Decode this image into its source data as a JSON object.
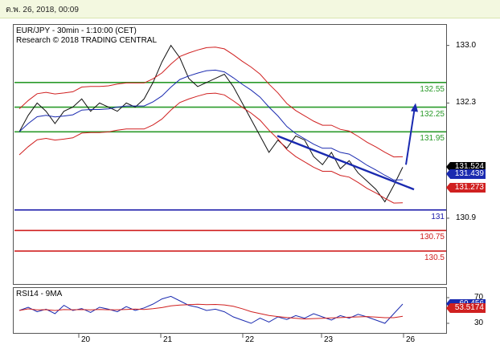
{
  "header": {
    "date_time": "ต.พ. 26, 2018, 00:09"
  },
  "chart_data": {
    "type": "line",
    "title": "EUR/JPY - 30min - 1:10:00 (CET)",
    "subtitle": "Research © 2018 TRADING CENTRAL",
    "y_ticks": [
      "133.0",
      "132.3",
      "130.9"
    ],
    "ylim": [
      130.1,
      133.25
    ],
    "x_ticks": [
      "20",
      "21",
      "22",
      "23",
      "26"
    ],
    "levels": [
      {
        "value": 132.55,
        "label": "132.55",
        "color": "#2a9a2a"
      },
      {
        "value": 132.25,
        "label": "132.25",
        "color": "#2a9a2a"
      },
      {
        "value": 131.95,
        "label": "131.95",
        "color": "#2a9a2a"
      },
      {
        "value": 131,
        "label": "131",
        "color": "#1a1aaa"
      },
      {
        "value": 130.75,
        "label": "130.75",
        "color": "#d02020"
      },
      {
        "value": 130.5,
        "label": "130.5",
        "color": "#d02020"
      }
    ],
    "price_series": [
      131.95,
      132.15,
      132.3,
      132.2,
      132.05,
      132.2,
      132.25,
      132.35,
      132.2,
      132.3,
      132.25,
      132.2,
      132.3,
      132.25,
      132.35,
      132.55,
      132.8,
      133.0,
      132.85,
      132.6,
      132.5,
      132.55,
      132.6,
      132.65,
      132.5,
      132.3,
      132.1,
      131.9,
      131.7,
      131.85,
      131.75,
      131.9,
      131.85,
      131.65,
      131.55,
      131.7,
      131.5,
      131.6,
      131.45,
      131.35,
      131.25,
      131.1,
      131.3,
      131.52
    ],
    "tags": [
      {
        "label": "131.524",
        "value": 131.524,
        "color": "#000000"
      },
      {
        "label": "131.439",
        "value": 131.439,
        "color": "#1a2ab0"
      },
      {
        "label": "131.273",
        "value": 131.273,
        "color": "#d02020"
      }
    ],
    "rsi": {
      "title": "RSI14 - 9MA",
      "y_ticks": [
        "70",
        "30"
      ],
      "ylim": [
        15,
        85
      ],
      "values": [
        50,
        55,
        48,
        52,
        45,
        58,
        50,
        53,
        47,
        55,
        52,
        48,
        56,
        50,
        54,
        60,
        68,
        72,
        65,
        58,
        55,
        50,
        52,
        48,
        40,
        35,
        30,
        38,
        32,
        40,
        36,
        42,
        38,
        45,
        40,
        35,
        42,
        38,
        44,
        40,
        35,
        30,
        45,
        60
      ],
      "tags": [
        {
          "label": "60.456",
          "value": 60.456,
          "color": "#1a2ab0"
        },
        {
          "label": "53.5174",
          "value": 53.5174,
          "color": "#d02020"
        }
      ]
    }
  }
}
